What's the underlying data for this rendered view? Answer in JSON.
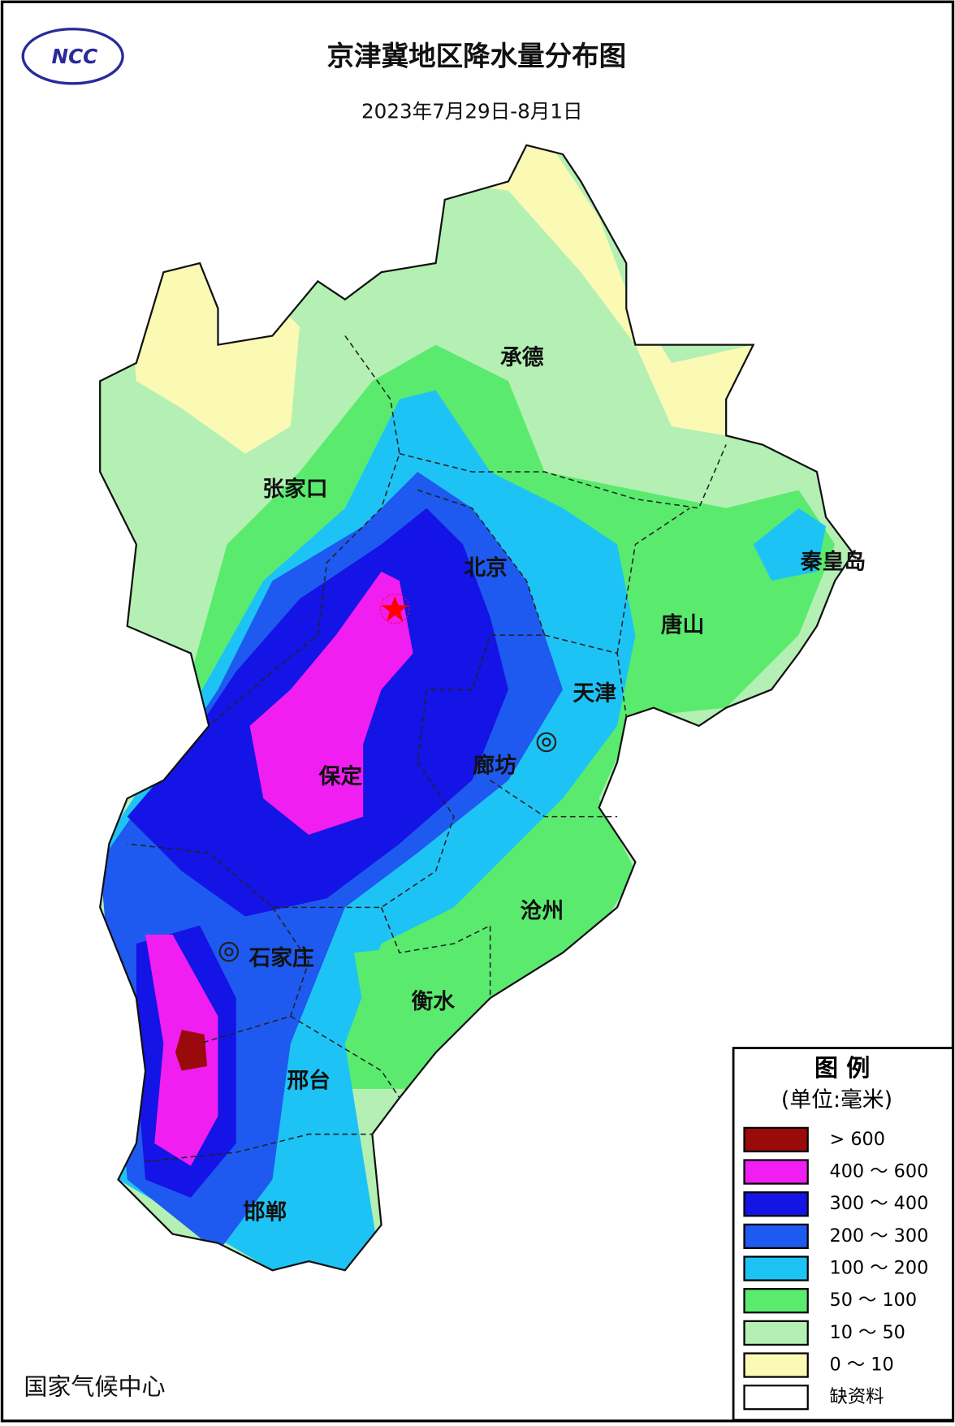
{
  "header": {
    "logo_text": "NCC",
    "title": "京津冀地区降水量分布图",
    "subtitle": "2023年7月29日-8月1日"
  },
  "cities": [
    {
      "label": "承德"
    },
    {
      "label": "张家口"
    },
    {
      "label": "北京"
    },
    {
      "label": "秦皇岛"
    },
    {
      "label": "唐山"
    },
    {
      "label": "天津"
    },
    {
      "label": "廊坊"
    },
    {
      "label": "保定"
    },
    {
      "label": "沧州"
    },
    {
      "label": "石家庄"
    },
    {
      "label": "衡水"
    },
    {
      "label": "邢台"
    },
    {
      "label": "邯郸"
    }
  ],
  "legend": {
    "title": "图 例",
    "unit": "(单位:毫米)",
    "items": [
      {
        "label": "> 600",
        "color": "#9b0a0a"
      },
      {
        "label": "400 ～ 600",
        "color": "#f01ef0"
      },
      {
        "label": "300 ～ 400",
        "color": "#1414e6"
      },
      {
        "label": "200 ～ 300",
        "color": "#1e5af0"
      },
      {
        "label": "100 ～ 200",
        "color": "#1ec3f5"
      },
      {
        "label": "50 ～ 100",
        "color": "#5aeb6e"
      },
      {
        "label": "10 ～ 50",
        "color": "#b4f0b4"
      },
      {
        "label": "0 ～ 10",
        "color": "#fafab4"
      },
      {
        "label": "缺资料",
        "color": "#ffffff"
      }
    ]
  },
  "footer": {
    "source": "国家气候中心"
  }
}
